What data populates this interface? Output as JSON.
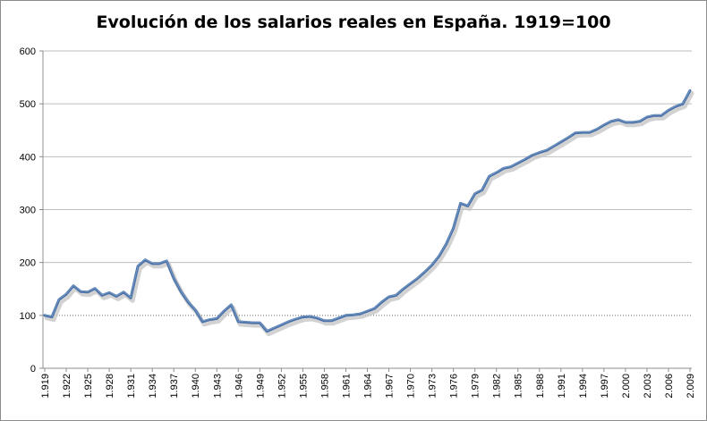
{
  "chart_data": {
    "type": "line",
    "title": "Evolución de los salarios reales en España. 1919=100",
    "xlabel": "",
    "ylabel": "",
    "ylim": [
      0,
      600
    ],
    "y_ticks": [
      "0",
      "100",
      "200",
      "300",
      "400",
      "500",
      "600"
    ],
    "x_tick_labels": [
      "1.919",
      "1.922",
      "1.925",
      "1.928",
      "1.931",
      "1.934",
      "1.937",
      "1.940",
      "1.943",
      "1.946",
      "1.949",
      "1.952",
      "1.955",
      "1.958",
      "1.961",
      "1.964",
      "1.967",
      "1.970",
      "1.973",
      "1.976",
      "1.979",
      "1.982",
      "1.985",
      "1.988",
      "1.991",
      "1.994",
      "1.997",
      "2.000",
      "2.003",
      "2.006",
      "2.009"
    ],
    "grid": "horizontal",
    "reference_line": {
      "y": 100,
      "style": "dotted"
    },
    "series_color": "#4a72a8",
    "x": [
      1919,
      1920,
      1921,
      1922,
      1923,
      1924,
      1925,
      1926,
      1927,
      1928,
      1929,
      1930,
      1931,
      1932,
      1933,
      1934,
      1935,
      1936,
      1937,
      1938,
      1939,
      1940,
      1941,
      1942,
      1943,
      1944,
      1945,
      1946,
      1947,
      1948,
      1949,
      1950,
      1951,
      1952,
      1953,
      1954,
      1955,
      1956,
      1957,
      1958,
      1959,
      1960,
      1961,
      1962,
      1963,
      1964,
      1965,
      1966,
      1967,
      1968,
      1969,
      1970,
      1971,
      1972,
      1973,
      1974,
      1975,
      1976,
      1977,
      1978,
      1979,
      1980,
      1981,
      1982,
      1983,
      1984,
      1985,
      1986,
      1987,
      1988,
      1989,
      1990,
      1991,
      1992,
      1993,
      1994,
      1995,
      1996,
      1997,
      1998,
      1999,
      2000,
      2001,
      2002,
      2003,
      2004,
      2005,
      2006,
      2007,
      2008,
      2009
    ],
    "series": [
      {
        "values": [
          100,
          97,
          130,
          140,
          156,
          145,
          144,
          151,
          138,
          143,
          136,
          144,
          133,
          193,
          205,
          198,
          198,
          203,
          170,
          145,
          125,
          110,
          88,
          92,
          94,
          108,
          120,
          88,
          87,
          86,
          86,
          70,
          76,
          82,
          88,
          93,
          97,
          98,
          95,
          90,
          90,
          95,
          100,
          101,
          103,
          108,
          113,
          125,
          135,
          138,
          150,
          160,
          170,
          182,
          195,
          212,
          235,
          265,
          312,
          307,
          330,
          337,
          363,
          370,
          378,
          381,
          388,
          395,
          403,
          408,
          412,
          420,
          428,
          436,
          445,
          446,
          446,
          452,
          460,
          467,
          470,
          465,
          465,
          467,
          475,
          478,
          478,
          488,
          495,
          500,
          525
        ]
      }
    ]
  }
}
